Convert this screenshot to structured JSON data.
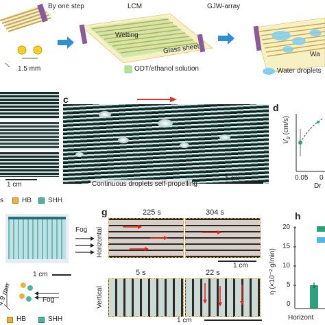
{
  "panel_a": {
    "step_label": "By one step",
    "lcm_label": "LCM",
    "gjw_label": "GJW-array",
    "wetting_label": "Wetting",
    "glass_label": "Glass sheet",
    "odt_label": "ODT/ethanol solution",
    "water_label": "Water droplets",
    "wa_label": "Wa",
    "spacing_label": "1.5 mm",
    "colors": {
      "odt": "#b6e39a",
      "droplet": "#7fd0f0",
      "arrow": "#2f8ed0",
      "rod": "#c8a84a",
      "electrode": "#8a5a9a"
    }
  },
  "panel_b": {
    "scale_label": "1 cm",
    "legend_left_tail": "s",
    "legend_hb": "HB",
    "legend_shh": "SHH",
    "colors": {
      "hb": "#e9b43a",
      "shh": "#48b7a2"
    }
  },
  "panel_c": {
    "label": "c",
    "caption": "Continuous  droplets self-propelling",
    "scale_label": "1 cm",
    "arrow_color": "#d23a2e"
  },
  "panel_d": {
    "label": "d",
    "ylabel": "V",
    "ylabel_sub": "0",
    "yunit": " (cm/s)",
    "xlabel": "Dr",
    "x_tick_1": "0.05",
    "x_tick_2": "0"
  },
  "panel_e": {
    "scale_label": "1 cm",
    "fog_label": "Fog",
    "spacing_label": "4.9 mm",
    "legend_hb": "HB",
    "legend_shh": "SHH"
  },
  "panel_g": {
    "label": "g",
    "time_1": "225 s",
    "time_2": "304 s",
    "time_3": "5 s",
    "time_4": "22 s",
    "fog_label": "Fog",
    "horizontal_label": "Horizontal",
    "vertical_label": "Vertical",
    "scale_label_1": "1 cm",
    "scale_label_2": "1 cm"
  },
  "panel_h": {
    "label": "h",
    "ylabel": "η (×10⁻² g/min)",
    "y_ticks": [
      "20",
      "15",
      "10",
      "5",
      "0"
    ],
    "xlabel": "Horizont",
    "bar_color": "#2aa37a",
    "legend_color_1": "#2aa37a",
    "legend_color_2": "#4db8e8"
  }
}
